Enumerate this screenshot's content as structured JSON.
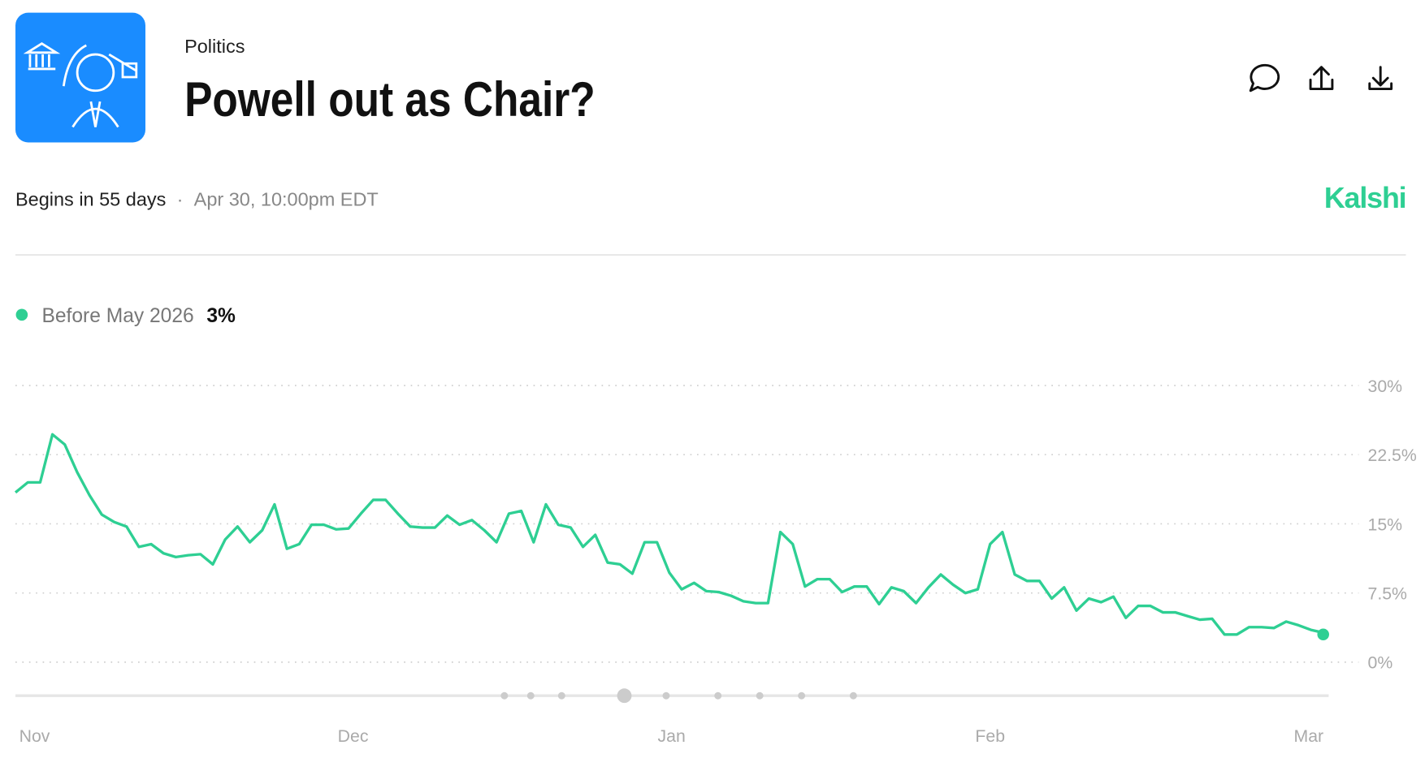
{
  "header": {
    "category": "Politics",
    "title": "Powell out as Chair?",
    "status": "Begins in 55 days",
    "separator": "·",
    "date": "Apr 30, 10:00pm EDT",
    "brand": "Kalshi"
  },
  "chart_data": {
    "type": "line",
    "xticks": [
      "Nov",
      "Dec",
      "Jan",
      "Feb",
      "Mar"
    ],
    "series": [
      {
        "name": "Before May 2026",
        "color": "#2ecf93",
        "last_value": 3,
        "last_value_label": "3%",
        "values": [
          18.4,
          19.5,
          19.5,
          24.7,
          23.6,
          20.6,
          18.1,
          16,
          15.2,
          14.7,
          12.5,
          12.8,
          11.8,
          11.4,
          11.6,
          11.7,
          10.6,
          13.3,
          14.7,
          13,
          14.3,
          17.1,
          12.3,
          12.8,
          14.9,
          14.9,
          14.4,
          14.5,
          16.1,
          17.6,
          17.6,
          16.1,
          14.7,
          14.6,
          14.6,
          15.9,
          14.9,
          15.4,
          14.3,
          13,
          16.1,
          16.4,
          13,
          17.1,
          14.9,
          14.6,
          12.5,
          13.8,
          10.8,
          10.6,
          9.6,
          13,
          13,
          9.7,
          7.9,
          8.6,
          7.7,
          7.6,
          7.2,
          6.6,
          6.4,
          6.4,
          14.1,
          12.8,
          8.2,
          9,
          9,
          7.6,
          8.2,
          8.2,
          6.3,
          8.1,
          7.7,
          6.4,
          8.1,
          9.5,
          8.4,
          7.5,
          7.9,
          12.8,
          14.1,
          9.5,
          8.8,
          8.8,
          6.9,
          8.1,
          5.6,
          6.9,
          6.5,
          7.1,
          4.8,
          6.1,
          6.1,
          5.4,
          5.4,
          5,
          4.6,
          4.7,
          3,
          3,
          3.8,
          3.8,
          3.7,
          4.4,
          4,
          3.5,
          3.2
        ]
      }
    ],
    "ylim": [
      0,
      30
    ],
    "yticks": [
      {
        "value": 0,
        "label": "0%"
      },
      {
        "value": 7.5,
        "label": "7.5%"
      },
      {
        "value": 15,
        "label": "15%"
      },
      {
        "value": 22.5,
        "label": "22.5%"
      },
      {
        "value": 30,
        "label": "30%"
      }
    ],
    "grid": true
  }
}
